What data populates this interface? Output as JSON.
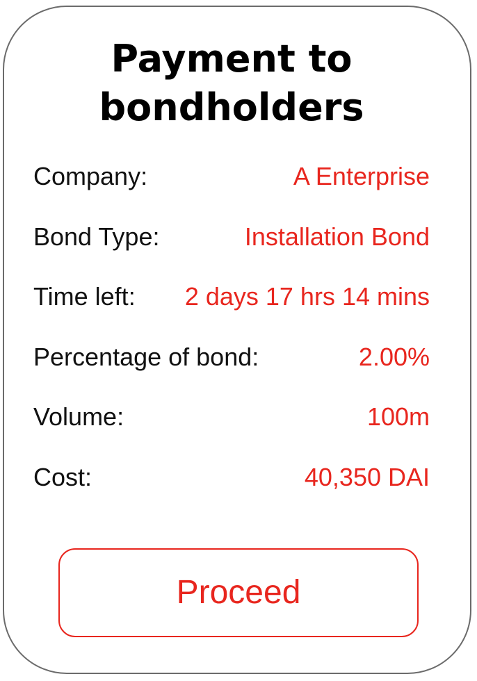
{
  "card": {
    "title_line1": "Payment to",
    "title_line2": "bondholders"
  },
  "details": [
    {
      "label": "Company:",
      "value": "A Enterprise"
    },
    {
      "label": "Bond Type:",
      "value": "Installation Bond"
    },
    {
      "label": "Time left:",
      "value": "2 days 17 hrs 14 mins"
    },
    {
      "label": "Percentage of bond:",
      "value": "2.00%"
    },
    {
      "label": "Volume:",
      "value": "100m"
    },
    {
      "label": "Cost:",
      "value": "40,350 DAI"
    }
  ],
  "actions": {
    "proceed_label": "Proceed"
  },
  "colors": {
    "accent": "#e8261e",
    "border": "#6b6b6b",
    "text": "#111111"
  }
}
